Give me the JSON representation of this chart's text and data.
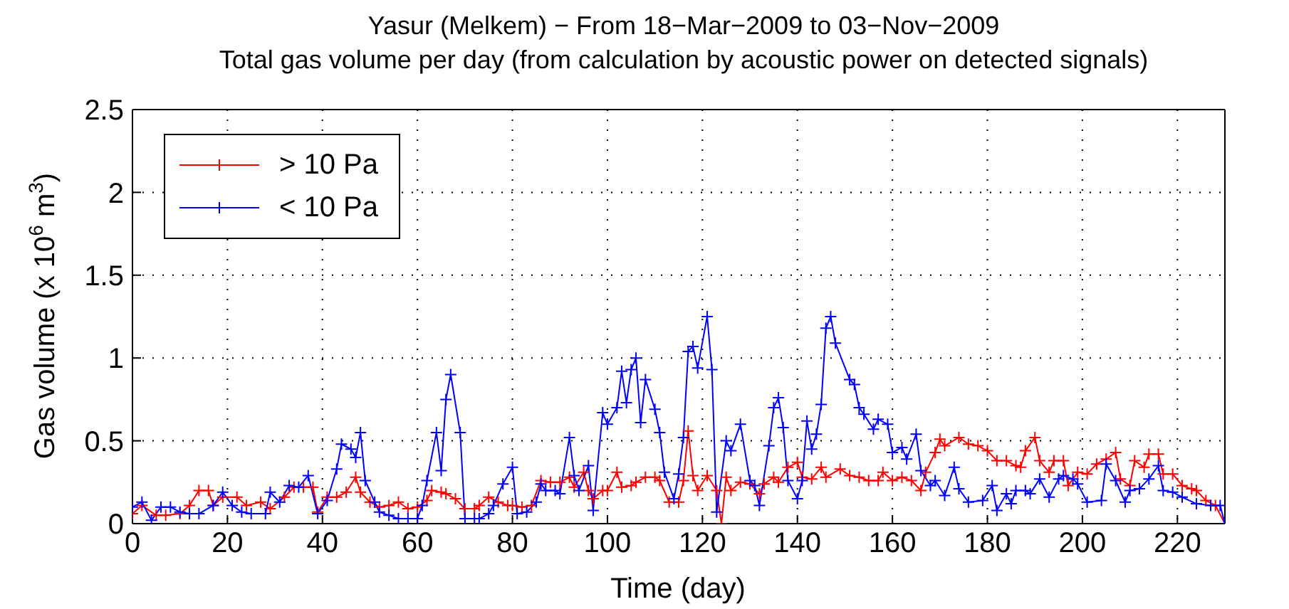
{
  "chart_data": {
    "type": "line",
    "title": "Yasur (Melkem) − From 18−Mar−2009 to 03−Nov−2009",
    "subtitle": "Total gas volume per day (from calculation by acoustic power on detected signals)",
    "xlabel": "Time (day)",
    "ylabel": "Gas volume (x 10$^{6}$ m$^{3}$)",
    "xlim": [
      0,
      230
    ],
    "xticks": [
      0,
      20,
      40,
      60,
      80,
      100,
      120,
      140,
      160,
      180,
      200,
      220
    ],
    "ylim": [
      0,
      2.5
    ],
    "yticks": [
      0,
      0.5,
      1,
      1.5,
      2,
      2.5
    ],
    "grid": true,
    "legend": "top left",
    "marker": "cross",
    "line_style": "solid",
    "series": [
      {
        "name": "> 10 Pa",
        "color": "#ff0000",
        "x": [
          0,
          2,
          5,
          7,
          10,
          12,
          14,
          16,
          17,
          19,
          22,
          24,
          27,
          29,
          32,
          34,
          36,
          38,
          39,
          41,
          43,
          45,
          47,
          48,
          50,
          52,
          54,
          56,
          58,
          60,
          62,
          63,
          65,
          66,
          68,
          70,
          72,
          73,
          75,
          77,
          79,
          80,
          82,
          84,
          86,
          88,
          90,
          92,
          93,
          95,
          96,
          97,
          99,
          100,
          102,
          103,
          105,
          106,
          108,
          110,
          111,
          113,
          115,
          116,
          117,
          118,
          119,
          121,
          123,
          124,
          125,
          126,
          128,
          130,
          132,
          133,
          135,
          136,
          138,
          140,
          141,
          143,
          145,
          146,
          149,
          151,
          153,
          155,
          157,
          158,
          160,
          162,
          164,
          166,
          167,
          169,
          170,
          171,
          174,
          176,
          178,
          180,
          182,
          184,
          186,
          187,
          188,
          190,
          191,
          193,
          194,
          196,
          197,
          199,
          201,
          203,
          205,
          207,
          208,
          210,
          211,
          213,
          214,
          216,
          217,
          219,
          221,
          223,
          224,
          226,
          228,
          230
        ],
        "values": [
          0.06,
          0.11,
          0.05,
          0.05,
          0.06,
          0.11,
          0.2,
          0.2,
          0.11,
          0.16,
          0.16,
          0.11,
          0.13,
          0.09,
          0.16,
          0.22,
          0.22,
          0.22,
          0.07,
          0.16,
          0.16,
          0.19,
          0.28,
          0.19,
          0.13,
          0.1,
          0.11,
          0.13,
          0.09,
          0.1,
          0.14,
          0.2,
          0.19,
          0.18,
          0.15,
          0.09,
          0.09,
          0.11,
          0.16,
          0.13,
          0.11,
          0.11,
          0.1,
          0.11,
          0.26,
          0.25,
          0.25,
          0.28,
          0.22,
          0.31,
          0.2,
          0.15,
          0.2,
          0.2,
          0.31,
          0.22,
          0.23,
          0.25,
          0.28,
          0.28,
          0.26,
          0.13,
          0.13,
          0.26,
          0.56,
          0.29,
          0.2,
          0.29,
          0.2,
          0,
          0.28,
          0.2,
          0.25,
          0.24,
          0.18,
          0.24,
          0.28,
          0.25,
          0.34,
          0.37,
          0.28,
          0.27,
          0.34,
          0.28,
          0.33,
          0.29,
          0.28,
          0.26,
          0.26,
          0.31,
          0.26,
          0.28,
          0.26,
          0.2,
          0.31,
          0.43,
          0.51,
          0.47,
          0.52,
          0.48,
          0.47,
          0.44,
          0.38,
          0.38,
          0.35,
          0.34,
          0.44,
          0.52,
          0.38,
          0.31,
          0.38,
          0.38,
          0.23,
          0.31,
          0.3,
          0.36,
          0.39,
          0.43,
          0.27,
          0.23,
          0.38,
          0.34,
          0.42,
          0.42,
          0.3,
          0.3,
          0.23,
          0.21,
          0.2,
          0.14,
          0.11,
          0
        ]
      },
      {
        "name": "< 10 Pa",
        "color": "#0000ff",
        "x": [
          0,
          2,
          4,
          6,
          8,
          10,
          12,
          14,
          17,
          19,
          21,
          23,
          25,
          28,
          29,
          31,
          33,
          35,
          37,
          39,
          41,
          43,
          44,
          46,
          47,
          48,
          49,
          51,
          52,
          54,
          56,
          58,
          60,
          61,
          62,
          64,
          65,
          66,
          67,
          69,
          70,
          72,
          73,
          75,
          76,
          78,
          80,
          81,
          83,
          85,
          86,
          87,
          89,
          90,
          92,
          93,
          94,
          96,
          97,
          99,
          100,
          102,
          103,
          104,
          105,
          106,
          107,
          108,
          110,
          111,
          112,
          114,
          115,
          116,
          117,
          118,
          119,
          121,
          122,
          123,
          125,
          126,
          128,
          130,
          131,
          132,
          134,
          135,
          136,
          137,
          138,
          140,
          141,
          142,
          143,
          144,
          145,
          146,
          147,
          148,
          151,
          152,
          153,
          154,
          156,
          157,
          159,
          160,
          162,
          163,
          165,
          166,
          168,
          169,
          171,
          173,
          174,
          176,
          179,
          181,
          182,
          184,
          185,
          186,
          188,
          189,
          191,
          193,
          195,
          196,
          198,
          199,
          201,
          204,
          205,
          207,
          209,
          210,
          212,
          214,
          216,
          217,
          219,
          221,
          224,
          227,
          229,
          230
        ],
        "values": [
          0.1,
          0.13,
          0.02,
          0.1,
          0.1,
          0.07,
          0.06,
          0.06,
          0.11,
          0.19,
          0.11,
          0.07,
          0.06,
          0.06,
          0.19,
          0.13,
          0.23,
          0.22,
          0.29,
          0.06,
          0.14,
          0.33,
          0.48,
          0.45,
          0.4,
          0.55,
          0.26,
          0.13,
          0.07,
          0.05,
          0.03,
          0.03,
          0.03,
          0.11,
          0.26,
          0.55,
          0.32,
          0.75,
          0.9,
          0.55,
          0.03,
          0.03,
          0.03,
          0.06,
          0.11,
          0.24,
          0.34,
          0.06,
          0.07,
          0.13,
          0.24,
          0.2,
          0.2,
          0.18,
          0.52,
          0.29,
          0.2,
          0.35,
          0.08,
          0.67,
          0.6,
          0.7,
          0.92,
          0.73,
          0.93,
          1.0,
          0.61,
          0.87,
          0.69,
          0.55,
          0.31,
          0.15,
          0.3,
          0.52,
          1.04,
          1.07,
          0.94,
          1.25,
          0.93,
          0.07,
          0.5,
          0.44,
          0.6,
          0.26,
          0.23,
          0.11,
          0.47,
          0.7,
          0.76,
          0.58,
          0.26,
          0.15,
          0.26,
          0.62,
          0.45,
          0.54,
          0.72,
          1.18,
          1.25,
          1.09,
          0.87,
          0.84,
          0.7,
          0.66,
          0.57,
          0.63,
          0.6,
          0.43,
          0.46,
          0.39,
          0.54,
          0.32,
          0.23,
          0.26,
          0.17,
          0.34,
          0.21,
          0.13,
          0.14,
          0.23,
          0.08,
          0.18,
          0.12,
          0.2,
          0.2,
          0.18,
          0.27,
          0.16,
          0.27,
          0.29,
          0.27,
          0.24,
          0.13,
          0.14,
          0.36,
          0.26,
          0.13,
          0.2,
          0.21,
          0.27,
          0.35,
          0.2,
          0.19,
          0.16,
          0.12,
          0.11,
          0.11,
          0
        ]
      }
    ]
  }
}
